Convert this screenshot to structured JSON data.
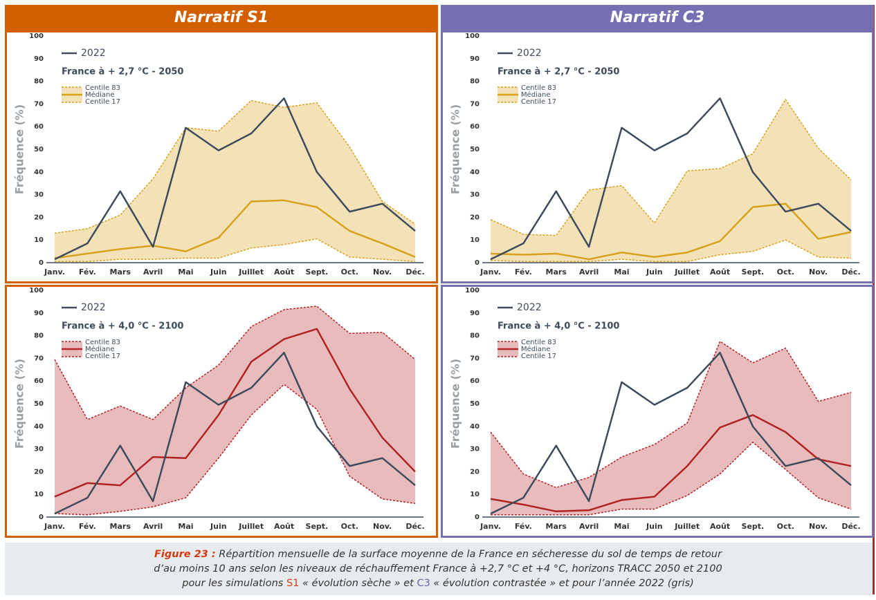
{
  "headers": [
    {
      "text": "Narratif S1",
      "color": "#d45f00"
    },
    {
      "text": "Narratif C3",
      "color": "#7670b3"
    }
  ],
  "chart_data": [
    {
      "type": "line",
      "subtitle": "France à + 2,7 °C - 2050",
      "y_label": "Fréquence (%)",
      "categories": [
        "Janv.",
        "Fév.",
        "Mars",
        "Avril",
        "Mai",
        "Juin",
        "Juillet",
        "Août",
        "Sept.",
        "Oct.",
        "Nov.",
        "Déc."
      ],
      "band_color": "#f3e1b8",
      "series": [
        {
          "name": "2022",
          "color": "#3d4b5c",
          "values": [
            1.5,
            8.5,
            31.5,
            7,
            59.5,
            49.5,
            57,
            72.5,
            40,
            22.5,
            26,
            14
          ]
        },
        {
          "name": "Centile 83",
          "color": "#d9a01a",
          "dashed": true,
          "values": [
            13,
            15,
            21,
            37,
            59.5,
            58,
            71.5,
            68.5,
            70.5,
            51,
            27,
            17
          ]
        },
        {
          "name": "Médiane",
          "color": "#d9a01a",
          "values": [
            2,
            4,
            6,
            7.5,
            5,
            11,
            27,
            27.5,
            24.5,
            14,
            8.5,
            2.5
          ]
        },
        {
          "name": "Centile 17",
          "color": "#d9a01a",
          "dashed": true,
          "values": [
            0.5,
            0.5,
            1.5,
            1.5,
            2,
            2,
            6.5,
            8,
            10.5,
            2.5,
            1.5,
            0.5
          ]
        }
      ],
      "ylim": [
        0,
        100
      ],
      "yticks": [
        0,
        10,
        20,
        30,
        40,
        50,
        60,
        70,
        80,
        90,
        100
      ]
    },
    {
      "type": "line",
      "subtitle": "France à + 2,7 °C - 2050",
      "y_label": "Fréquence (%)",
      "categories": [
        "Janv.",
        "Fév.",
        "Mars",
        "Avril",
        "Mai",
        "Juin",
        "Juillet",
        "Août",
        "Sept.",
        "Oct.",
        "Nov.",
        "Déc."
      ],
      "band_color": "#f3e1b8",
      "series": [
        {
          "name": "2022",
          "color": "#3d4b5c",
          "values": [
            1.5,
            8.5,
            31.5,
            7,
            59.5,
            49.5,
            57,
            72.5,
            40,
            22.5,
            26,
            14
          ]
        },
        {
          "name": "Centile 83",
          "color": "#d9a01a",
          "dashed": true,
          "values": [
            19,
            12.5,
            12,
            32,
            34,
            17.5,
            40.5,
            41.5,
            48,
            72,
            50.5,
            36.5
          ]
        },
        {
          "name": "Médiane",
          "color": "#d9a01a",
          "values": [
            4,
            3.5,
            4,
            1.5,
            4.5,
            2.5,
            4.5,
            9.5,
            24.5,
            26,
            10.5,
            13.5
          ]
        },
        {
          "name": "Centile 17",
          "color": "#d9a01a",
          "dashed": true,
          "values": [
            1,
            0.5,
            0.5,
            0.5,
            1.5,
            0.5,
            0.5,
            3.5,
            5,
            10,
            2.5,
            2
          ]
        }
      ],
      "ylim": [
        0,
        100
      ],
      "yticks": [
        0,
        10,
        20,
        30,
        40,
        50,
        60,
        70,
        80,
        90,
        100
      ]
    },
    {
      "type": "line",
      "subtitle": "France à + 4,0 °C - 2100",
      "y_label": "Fréquence (%)",
      "categories": [
        "Janv.",
        "Fév.",
        "Mars",
        "Avril",
        "Mai",
        "Juin",
        "Juillet",
        "Août",
        "Sept.",
        "Oct.",
        "Nov.",
        "Déc."
      ],
      "band_color": "#e8bcbc",
      "series": [
        {
          "name": "2022",
          "color": "#3d4b5c",
          "values": [
            1.5,
            8.5,
            31.5,
            7,
            59.5,
            49.5,
            57,
            72.5,
            40,
            22.5,
            26,
            14
          ]
        },
        {
          "name": "Centile 83",
          "color": "#b22222",
          "dashed": true,
          "values": [
            69.5,
            43,
            49,
            43,
            57,
            67,
            84,
            91.5,
            93,
            81,
            81.5,
            69.5
          ]
        },
        {
          "name": "Médiane",
          "color": "#b22222",
          "values": [
            9,
            15,
            14,
            26.5,
            26,
            45,
            68.5,
            78.5,
            83,
            56.5,
            35,
            20
          ]
        },
        {
          "name": "Centile 17",
          "color": "#b22222",
          "dashed": true,
          "values": [
            1.5,
            1,
            2.5,
            4.5,
            8.5,
            26,
            45,
            58.5,
            47.5,
            18,
            8,
            6
          ]
        }
      ],
      "ylim": [
        0,
        100
      ],
      "yticks": [
        0,
        10,
        20,
        30,
        40,
        50,
        60,
        70,
        80,
        90,
        100
      ]
    },
    {
      "type": "line",
      "subtitle": "France à + 4,0 °C - 2100",
      "y_label": "Fréquence (%)",
      "categories": [
        "Janv.",
        "Fév.",
        "Mars",
        "Avril",
        "Mai",
        "Juin",
        "Juillet",
        "Août",
        "Sept.",
        "Oct.",
        "Nov.",
        "Déc."
      ],
      "band_color": "#e8bcbc",
      "series": [
        {
          "name": "2022",
          "color": "#3d4b5c",
          "values": [
            1.5,
            8.5,
            31.5,
            7,
            59.5,
            49.5,
            57,
            72.5,
            40,
            22.5,
            26,
            14
          ]
        },
        {
          "name": "Centile 83",
          "color": "#b22222",
          "dashed": true,
          "values": [
            37.5,
            19,
            13,
            17.5,
            26.5,
            32,
            41.5,
            77.5,
            68,
            74.5,
            51,
            55
          ]
        },
        {
          "name": "Médiane",
          "color": "#b22222",
          "values": [
            8,
            5.5,
            2.5,
            3,
            7.5,
            9,
            22.5,
            39.5,
            45,
            37.5,
            25.5,
            22.5
          ]
        },
        {
          "name": "Centile 17",
          "color": "#b22222",
          "dashed": true,
          "values": [
            1,
            1,
            1,
            1,
            3.5,
            3.5,
            9.5,
            19,
            33,
            21,
            8.5,
            3.5
          ]
        }
      ],
      "ylim": [
        0,
        100
      ],
      "yticks": [
        0,
        10,
        20,
        30,
        40,
        50,
        60,
        70,
        80,
        90,
        100
      ]
    }
  ],
  "caption": {
    "label": "Figure 23 :",
    "line1": " Répartition mensuelle de la surface moyenne de la France en sécheresse du sol de temps de retour",
    "line2": "d’au moins 10 ans selon les niveaux de réchauffement France à +2,7 °C et +4 °C, horizons TRACC 2050 et 2100",
    "line3": [
      "pour les simulations ",
      "S1",
      " « évolution sèche » et ",
      "C3",
      " « évolution contrastée » et pour l’année 2022 (gris)"
    ]
  }
}
